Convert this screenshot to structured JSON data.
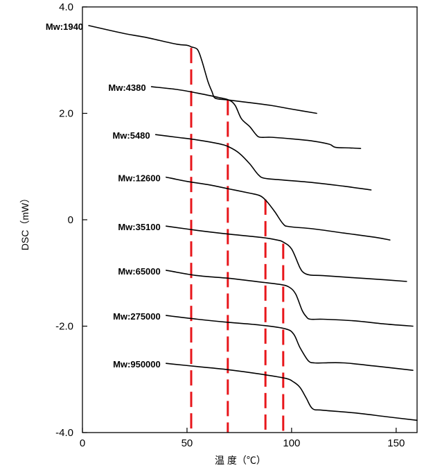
{
  "chart_data": {
    "type": "line",
    "title": "",
    "xlabel": "温 度（℃）",
    "ylabel": "DSC（mW）",
    "xlim": [
      0,
      160
    ],
    "ylim": [
      -4.0,
      4.0
    ],
    "x_ticks": [
      0,
      50,
      100,
      150
    ],
    "y_ticks": [
      {
        "value": -4.0,
        "label": "-4.0"
      },
      {
        "value": -2.0,
        "label": "-2.0"
      },
      {
        "value": 0,
        "label": "0"
      },
      {
        "value": 2.0,
        "label": "2.0"
      },
      {
        "value": 4.0,
        "label": "4.0"
      }
    ],
    "grid": false,
    "line_color": "#000000",
    "marker_color": "#e8161b",
    "series": [
      {
        "name": "Mw:1940",
        "points": [
          [
            3,
            3.65
          ],
          [
            20,
            3.5
          ],
          [
            30,
            3.43
          ],
          [
            45,
            3.3
          ],
          [
            50,
            3.28
          ],
          [
            52,
            3.25
          ],
          [
            55,
            3.2
          ],
          [
            57,
            3.0
          ],
          [
            60,
            2.6
          ],
          [
            62,
            2.4
          ],
          [
            63,
            2.3
          ],
          [
            65,
            2.27
          ],
          [
            70,
            2.25
          ],
          [
            80,
            2.2
          ],
          [
            90,
            2.15
          ],
          [
            100,
            2.08
          ],
          [
            112,
            2.0
          ]
        ]
      },
      {
        "name": "Mw:4380",
        "points": [
          [
            33,
            2.5
          ],
          [
            45,
            2.45
          ],
          [
            55,
            2.38
          ],
          [
            65,
            2.3
          ],
          [
            70,
            2.25
          ],
          [
            73,
            2.15
          ],
          [
            76,
            1.9
          ],
          [
            80,
            1.75
          ],
          [
            83,
            1.6
          ],
          [
            85,
            1.55
          ],
          [
            90,
            1.55
          ],
          [
            100,
            1.52
          ],
          [
            110,
            1.48
          ],
          [
            118,
            1.42
          ],
          [
            121,
            1.36
          ],
          [
            128,
            1.35
          ],
          [
            133,
            1.34
          ]
        ]
      },
      {
        "name": "Mw:5480",
        "points": [
          [
            35,
            1.6
          ],
          [
            45,
            1.55
          ],
          [
            55,
            1.5
          ],
          [
            65,
            1.43
          ],
          [
            70,
            1.37
          ],
          [
            75,
            1.25
          ],
          [
            80,
            1.05
          ],
          [
            84,
            0.85
          ],
          [
            87,
            0.78
          ],
          [
            95,
            0.75
          ],
          [
            110,
            0.7
          ],
          [
            125,
            0.63
          ],
          [
            138,
            0.56
          ]
        ]
      },
      {
        "name": "Mw:12600",
        "points": [
          [
            40,
            0.8
          ],
          [
            50,
            0.72
          ],
          [
            60,
            0.66
          ],
          [
            70,
            0.58
          ],
          [
            80,
            0.5
          ],
          [
            85,
            0.45
          ],
          [
            88,
            0.35
          ],
          [
            92,
            0.15
          ],
          [
            96,
            -0.08
          ],
          [
            99,
            -0.13
          ],
          [
            110,
            -0.17
          ],
          [
            125,
            -0.25
          ],
          [
            140,
            -0.33
          ],
          [
            147,
            -0.38
          ]
        ]
      },
      {
        "name": "Mw:35100",
        "points": [
          [
            40,
            -0.12
          ],
          [
            55,
            -0.2
          ],
          [
            70,
            -0.27
          ],
          [
            85,
            -0.33
          ],
          [
            93,
            -0.38
          ],
          [
            96,
            -0.42
          ],
          [
            100,
            -0.55
          ],
          [
            104,
            -0.9
          ],
          [
            106,
            -1.0
          ],
          [
            109,
            -1.04
          ],
          [
            115,
            -1.05
          ],
          [
            130,
            -1.09
          ],
          [
            145,
            -1.13
          ],
          [
            155,
            -1.16
          ]
        ]
      },
      {
        "name": "Mw:65000",
        "points": [
          [
            40,
            -0.95
          ],
          [
            55,
            -1.05
          ],
          [
            70,
            -1.1
          ],
          [
            85,
            -1.17
          ],
          [
            95,
            -1.22
          ],
          [
            99,
            -1.27
          ],
          [
            102,
            -1.4
          ],
          [
            105,
            -1.7
          ],
          [
            107,
            -1.82
          ],
          [
            109,
            -1.87
          ],
          [
            115,
            -1.87
          ],
          [
            130,
            -1.9
          ],
          [
            145,
            -1.96
          ],
          [
            158,
            -2.0
          ]
        ]
      },
      {
        "name": "Mw:275000",
        "points": [
          [
            40,
            -1.8
          ],
          [
            55,
            -1.87
          ],
          [
            70,
            -1.93
          ],
          [
            85,
            -1.98
          ],
          [
            97,
            -2.05
          ],
          [
            101,
            -2.15
          ],
          [
            104,
            -2.4
          ],
          [
            108,
            -2.65
          ],
          [
            111,
            -2.69
          ],
          [
            115,
            -2.69
          ],
          [
            125,
            -2.69
          ],
          [
            140,
            -2.75
          ],
          [
            158,
            -2.83
          ]
        ]
      },
      {
        "name": "Mw:950000",
        "points": [
          [
            40,
            -2.7
          ],
          [
            55,
            -2.76
          ],
          [
            70,
            -2.82
          ],
          [
            85,
            -2.9
          ],
          [
            97,
            -2.98
          ],
          [
            101,
            -3.05
          ],
          [
            104,
            -3.15
          ],
          [
            107,
            -3.35
          ],
          [
            110,
            -3.55
          ],
          [
            115,
            -3.58
          ],
          [
            130,
            -3.63
          ],
          [
            145,
            -3.7
          ],
          [
            160,
            -3.77
          ]
        ]
      }
    ],
    "markers": [
      {
        "x": 52,
        "y_top": 3.23,
        "y_bottom": -4.0
      },
      {
        "x": 69.5,
        "y_top": 2.25,
        "y_bottom": -4.0
      },
      {
        "x": 87.5,
        "y_top": 0.38,
        "y_bottom": -4.0
      },
      {
        "x": 96,
        "y_top": -0.45,
        "y_bottom": -4.0
      }
    ]
  }
}
